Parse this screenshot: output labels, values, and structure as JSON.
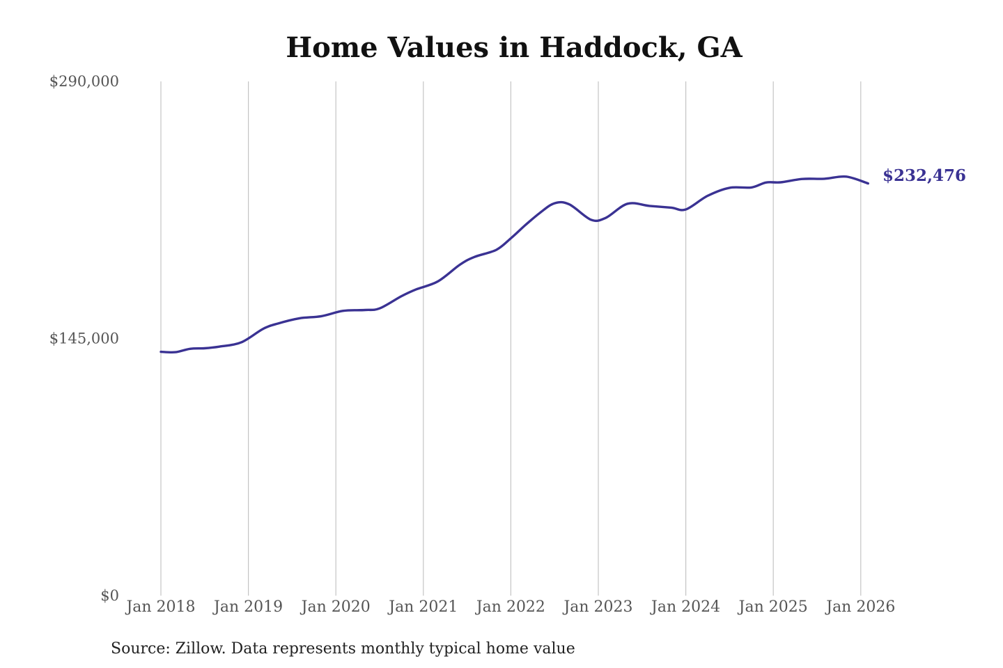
{
  "chart_data": {
    "type": "line",
    "title": "Home Values in Haddock, GA",
    "source": "Source: Zillow. Data represents monthly typical home value",
    "xlabel": "",
    "ylabel": "",
    "ylim": [
      0,
      290000
    ],
    "y_ticks": [
      0,
      145000,
      290000
    ],
    "y_tick_labels": [
      "$0",
      "$145,000",
      "$290,000"
    ],
    "x_ticks": [
      "2018-01",
      "2019-01",
      "2020-01",
      "2021-01",
      "2022-01",
      "2023-01",
      "2024-01",
      "2025-01",
      "2026-01"
    ],
    "x_tick_labels": [
      "Jan 2018",
      "Jan 2019",
      "Jan 2020",
      "Jan 2021",
      "Jan 2022",
      "Jan 2023",
      "Jan 2024",
      "Jan 2025",
      "Jan 2026"
    ],
    "grid": "vertical",
    "line_color": "#3a3293",
    "end_label": "$232,476",
    "series": [
      {
        "x": [
          "2018-01",
          "2018-03",
          "2018-05",
          "2018-07",
          "2018-09",
          "2018-12",
          "2019-03",
          "2019-05",
          "2019-08",
          "2019-11",
          "2020-02",
          "2020-05",
          "2020-07",
          "2020-10",
          "2020-12",
          "2021-03",
          "2021-06",
          "2021-08",
          "2021-11",
          "2022-01",
          "2022-03",
          "2022-05",
          "2022-07",
          "2022-09",
          "2022-12",
          "2023-02",
          "2023-05",
          "2023-08",
          "2023-11",
          "2024-01",
          "2024-04",
          "2024-07",
          "2024-10",
          "2024-12",
          "2025-02",
          "2025-05",
          "2025-08",
          "2025-11",
          "2026-02"
        ],
        "y": [
          137500,
          137300,
          139200,
          139500,
          140400,
          142800,
          150400,
          153400,
          156400,
          157600,
          160600,
          161100,
          162000,
          168900,
          172700,
          177200,
          186600,
          191000,
          195000,
          201500,
          209000,
          215900,
          221300,
          220700,
          212000,
          213000,
          221000,
          219800,
          218800,
          217800,
          225500,
          230000,
          230200,
          233000,
          233100,
          235000,
          235100,
          236300,
          232476
        ]
      }
    ]
  }
}
